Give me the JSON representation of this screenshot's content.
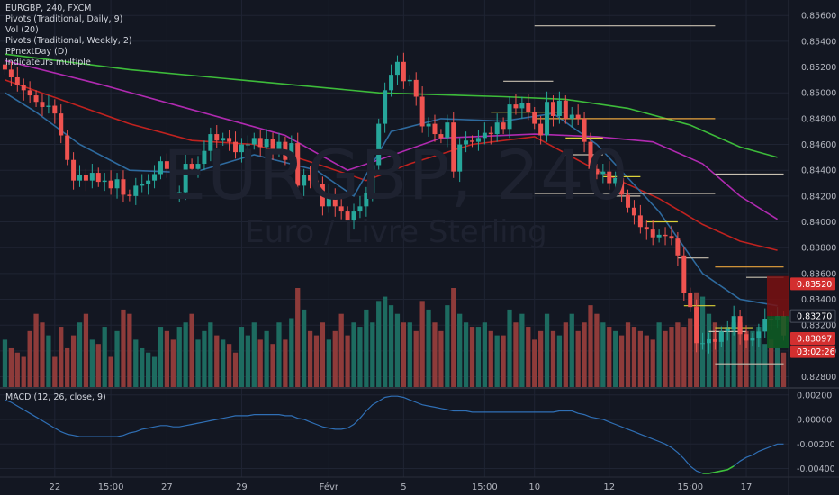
{
  "header": {
    "symbol_line": "EURGBP, 240, FXCM",
    "indicators": [
      "Pivots (Traditional, Daily, 9)",
      "Vol (20)",
      "Pivots (Traditional, Weekly, 2)",
      "PPnextDay (D)",
      "Indicateurs multiple"
    ]
  },
  "watermark": {
    "symbol": "EURGBP, 240",
    "description": "Euro / Livre Sterling"
  },
  "macd_label": "MACD (12, 26, close, 9)",
  "colors": {
    "background": "#131722",
    "grid": "#1f2433",
    "up": "#26a69a",
    "down": "#ef5350",
    "vol_up": "#1d6b60",
    "vol_down": "#8e3b3a",
    "ma_green": "#3dbb3a",
    "ma_magenta": "#b02ab0",
    "ma_red": "#c0221f",
    "ma_blue": "#2e6a9e",
    "pivot_orange": "#e8a33d",
    "pivot_yellow": "#dcd23a",
    "pivot_white": "#c8c0b0",
    "macd_line": "#2f6fb5",
    "macd_highlight": "#3ec23a",
    "axis_text": "#b2b5be"
  },
  "chart_data": {
    "type": "candlestick",
    "price_axis": {
      "ylim": [
        0.8272,
        0.8572
      ],
      "ticks": [
        "0.85600",
        "0.85400",
        "0.85200",
        "0.85000",
        "0.84800",
        "0.84600",
        "0.84400",
        "0.84200",
        "0.84000",
        "0.83800",
        "0.83600",
        "0.83400",
        "0.83200",
        "0.83000",
        "0.82800"
      ]
    },
    "macd_axis": {
      "ylim": [
        -0.0047,
        0.0025
      ],
      "ticks": [
        "0.00200",
        "0.00000",
        "-0.00200",
        "-0.00400"
      ]
    },
    "x_axis": {
      "count": 126,
      "labels": [
        {
          "i": 8,
          "text": "22"
        },
        {
          "i": 17,
          "text": "15:00"
        },
        {
          "i": 26,
          "text": "27"
        },
        {
          "i": 38,
          "text": "29"
        },
        {
          "i": 52,
          "text": "Févr"
        },
        {
          "i": 64,
          "text": "5"
        },
        {
          "i": 77,
          "text": "15:00"
        },
        {
          "i": 85,
          "text": "10"
        },
        {
          "i": 97,
          "text": "12"
        },
        {
          "i": 110,
          "text": "15:00"
        },
        {
          "i": 119,
          "text": "17"
        }
      ]
    },
    "price_badges": [
      {
        "text": "0.83520",
        "value": 0.8352,
        "color": "#d32f2f"
      },
      {
        "text": "0.83270",
        "value": 0.8327,
        "color": "#131722"
      },
      {
        "text": "0.83097",
        "value": 0.83097,
        "color": "#d32f2f"
      },
      {
        "text": "03:02:26",
        "value": 0.82995,
        "color": "#d32f2f"
      }
    ],
    "close": [
      0.8518,
      0.8512,
      0.8506,
      0.8502,
      0.8498,
      0.8493,
      0.8489,
      0.849,
      0.8484,
      0.8467,
      0.8448,
      0.8432,
      0.8436,
      0.8432,
      0.8438,
      0.8431,
      0.8432,
      0.8426,
      0.8433,
      0.8421,
      0.842,
      0.8428,
      0.8429,
      0.8432,
      0.8437,
      0.8447,
      0.8441,
      0.8423,
      0.8423,
      0.8445,
      0.8441,
      0.8445,
      0.8455,
      0.8468,
      0.8463,
      0.8465,
      0.8462,
      0.8454,
      0.846,
      0.846,
      0.8465,
      0.8458,
      0.8464,
      0.8456,
      0.8462,
      0.8448,
      0.8461,
      0.8428,
      0.8436,
      0.8432,
      0.8429,
      0.8412,
      0.8421,
      0.8412,
      0.8408,
      0.8401,
      0.8408,
      0.8412,
      0.8422,
      0.8444,
      0.8476,
      0.8502,
      0.8514,
      0.8524,
      0.8509,
      0.851,
      0.8497,
      0.8474,
      0.8476,
      0.8468,
      0.8465,
      0.8477,
      0.8439,
      0.846,
      0.8463,
      0.8462,
      0.8465,
      0.8469,
      0.8468,
      0.8477,
      0.8472,
      0.8491,
      0.8488,
      0.8492,
      0.8485,
      0.8476,
      0.8467,
      0.8493,
      0.8482,
      0.8494,
      0.848,
      0.8483,
      0.848,
      0.8462,
      0.8441,
      0.8437,
      0.8439,
      0.843,
      0.8434,
      0.8421,
      0.8411,
      0.8405,
      0.8396,
      0.8394,
      0.8388,
      0.839,
      0.8389,
      0.8387,
      0.8374,
      0.8345,
      0.8334,
      0.8306,
      0.8306,
      0.8309,
      0.8307,
      0.8315,
      0.8317,
      0.8327,
      0.8313,
      0.8308,
      0.831,
      0.8315,
      0.8325,
      0.8324,
      0.8327,
      0.8312
    ],
    "volume_note": "volume bars share the price pane bottom; heights are relative activity",
    "volume": [
      22,
      18,
      16,
      14,
      26,
      34,
      30,
      24,
      14,
      28,
      18,
      24,
      30,
      34,
      22,
      20,
      28,
      14,
      26,
      36,
      34,
      22,
      18,
      16,
      14,
      28,
      26,
      22,
      28,
      30,
      34,
      22,
      26,
      30,
      24,
      22,
      20,
      16,
      28,
      24,
      30,
      22,
      26,
      20,
      30,
      22,
      32,
      46,
      36,
      26,
      24,
      30,
      22,
      26,
      34,
      24,
      30,
      28,
      36,
      30,
      40,
      42,
      38,
      34,
      30,
      30,
      26,
      40,
      36,
      30,
      26,
      38,
      46,
      34,
      30,
      28,
      28,
      30,
      26,
      24,
      24,
      36,
      30,
      34,
      28,
      22,
      26,
      34,
      26,
      24,
      30,
      34,
      26,
      30,
      38,
      34,
      30,
      28,
      26,
      24,
      30,
      28,
      26,
      24,
      22,
      30,
      26,
      28,
      30,
      28,
      32,
      44,
      42,
      34,
      30,
      26,
      28,
      30,
      30,
      26,
      26,
      28,
      20,
      22,
      18,
      16
    ],
    "ma": [
      {
        "color_key": "ma_green",
        "start": 0.853,
        "points": [
          [
            0,
            0.853
          ],
          [
            20,
            0.8518
          ],
          [
            40,
            0.8509
          ],
          [
            60,
            0.85
          ],
          [
            80,
            0.8497
          ],
          [
            90,
            0.8495
          ],
          [
            100,
            0.8488
          ],
          [
            110,
            0.8475
          ],
          [
            118,
            0.8458
          ],
          [
            124,
            0.845
          ]
        ]
      },
      {
        "color_key": "ma_magenta",
        "start": 0.8525,
        "points": [
          [
            0,
            0.8525
          ],
          [
            15,
            0.8507
          ],
          [
            30,
            0.8487
          ],
          [
            45,
            0.8467
          ],
          [
            55,
            0.844
          ],
          [
            60,
            0.8448
          ],
          [
            70,
            0.8465
          ],
          [
            85,
            0.8468
          ],
          [
            95,
            0.8466
          ],
          [
            104,
            0.8462
          ],
          [
            112,
            0.8445
          ],
          [
            118,
            0.842
          ],
          [
            124,
            0.8402
          ]
        ]
      },
      {
        "color_key": "ma_red",
        "start": 0.851,
        "points": [
          [
            0,
            0.851
          ],
          [
            10,
            0.8493
          ],
          [
            20,
            0.8476
          ],
          [
            30,
            0.8463
          ],
          [
            40,
            0.846
          ],
          [
            50,
            0.8445
          ],
          [
            58,
            0.8432
          ],
          [
            65,
            0.8445
          ],
          [
            75,
            0.846
          ],
          [
            85,
            0.8466
          ],
          [
            95,
            0.844
          ],
          [
            105,
            0.8418
          ],
          [
            112,
            0.8398
          ],
          [
            118,
            0.8385
          ],
          [
            124,
            0.8378
          ]
        ]
      },
      {
        "color_key": "ma_blue",
        "start": 0.85,
        "points": [
          [
            0,
            0.85
          ],
          [
            5,
            0.8485
          ],
          [
            12,
            0.846
          ],
          [
            20,
            0.844
          ],
          [
            30,
            0.8438
          ],
          [
            40,
            0.8452
          ],
          [
            50,
            0.844
          ],
          [
            56,
            0.842
          ],
          [
            62,
            0.847
          ],
          [
            70,
            0.848
          ],
          [
            80,
            0.8478
          ],
          [
            88,
            0.8484
          ],
          [
            95,
            0.846
          ],
          [
            105,
            0.8408
          ],
          [
            112,
            0.836
          ],
          [
            118,
            0.834
          ],
          [
            124,
            0.8335
          ]
        ]
      }
    ],
    "pivots": [
      {
        "color_key": "pivot_white",
        "value": 0.8552,
        "from": 85,
        "to": 114
      },
      {
        "color_key": "pivot_orange",
        "value": 0.848,
        "from": 85,
        "to": 114
      },
      {
        "color_key": "pivot_white",
        "value": 0.8422,
        "from": 85,
        "to": 114
      },
      {
        "color_key": "pivot_white",
        "value": 0.8437,
        "from": 114,
        "to": 125
      },
      {
        "color_key": "pivot_orange",
        "value": 0.8365,
        "from": 114,
        "to": 125
      },
      {
        "color_key": "pivot_white",
        "value": 0.829,
        "from": 114,
        "to": 125
      },
      {
        "color_key": "pivot_white",
        "value": 0.8509,
        "from": 80,
        "to": 88
      },
      {
        "color_key": "pivot_yellow",
        "value": 0.8485,
        "from": 78,
        "to": 90
      },
      {
        "color_key": "pivot_yellow",
        "value": 0.8465,
        "from": 90,
        "to": 96
      },
      {
        "color_key": "pivot_white",
        "value": 0.8452,
        "from": 90,
        "to": 96
      },
      {
        "color_key": "pivot_yellow",
        "value": 0.8435,
        "from": 96,
        "to": 102
      },
      {
        "color_key": "pivot_white",
        "value": 0.842,
        "from": 96,
        "to": 102
      },
      {
        "color_key": "pivot_yellow",
        "value": 0.84,
        "from": 103,
        "to": 108
      },
      {
        "color_key": "pivot_white",
        "value": 0.8372,
        "from": 108,
        "to": 113
      },
      {
        "color_key": "pivot_yellow",
        "value": 0.8335,
        "from": 109,
        "to": 114
      },
      {
        "color_key": "pivot_white",
        "value": 0.8315,
        "from": 113,
        "to": 119
      },
      {
        "color_key": "pivot_yellow",
        "value": 0.8318,
        "from": 114,
        "to": 120
      },
      {
        "color_key": "pivot_white",
        "value": 0.8357,
        "from": 119,
        "to": 125
      }
    ],
    "macd": [
      0.0016,
      0.0014,
      0.0011,
      0.0008,
      0.0005,
      0.0002,
      -0.0001,
      -0.0004,
      -0.0007,
      -0.001,
      -0.0012,
      -0.0013,
      -0.0014,
      -0.0014,
      -0.0014,
      -0.0014,
      -0.0014,
      -0.0014,
      -0.0014,
      -0.0013,
      -0.0011,
      -0.001,
      -0.0008,
      -0.0007,
      -0.0006,
      -0.0005,
      -0.0005,
      -0.0006,
      -0.0006,
      -0.0005,
      -0.0004,
      -0.0003,
      -0.0002,
      -0.0001,
      0.0,
      0.0001,
      0.0002,
      0.0003,
      0.0003,
      0.0003,
      0.0004,
      0.0004,
      0.0004,
      0.0004,
      0.0004,
      0.0003,
      0.0003,
      0.0001,
      0.0,
      -0.0002,
      -0.0004,
      -0.0006,
      -0.0007,
      -0.0008,
      -0.0008,
      -0.0007,
      -0.0004,
      0.0001,
      0.0007,
      0.0012,
      0.0015,
      0.0018,
      0.0019,
      0.0019,
      0.0018,
      0.0016,
      0.0014,
      0.0012,
      0.0011,
      0.001,
      0.0009,
      0.0008,
      0.0007,
      0.0007,
      0.0007,
      0.0006,
      0.0006,
      0.0006,
      0.0006,
      0.0006,
      0.0006,
      0.0006,
      0.0006,
      0.0006,
      0.0006,
      0.0006,
      0.0006,
      0.0006,
      0.0006,
      0.0007,
      0.0007,
      0.0007,
      0.0005,
      0.0004,
      0.0002,
      0.0001,
      0.0,
      -0.0002,
      -0.0004,
      -0.0006,
      -0.0008,
      -0.001,
      -0.0012,
      -0.0014,
      -0.0016,
      -0.0018,
      -0.002,
      -0.0023,
      -0.0027,
      -0.0032,
      -0.0038,
      -0.0042,
      -0.0044,
      -0.0044,
      -0.0043,
      -0.0042,
      -0.0041,
      -0.0038,
      -0.0034,
      -0.0031,
      -0.0029,
      -0.0026,
      -0.0024,
      -0.0022,
      -0.002,
      -0.002
    ],
    "macd_highlight_range": [
      112,
      117
    ]
  }
}
